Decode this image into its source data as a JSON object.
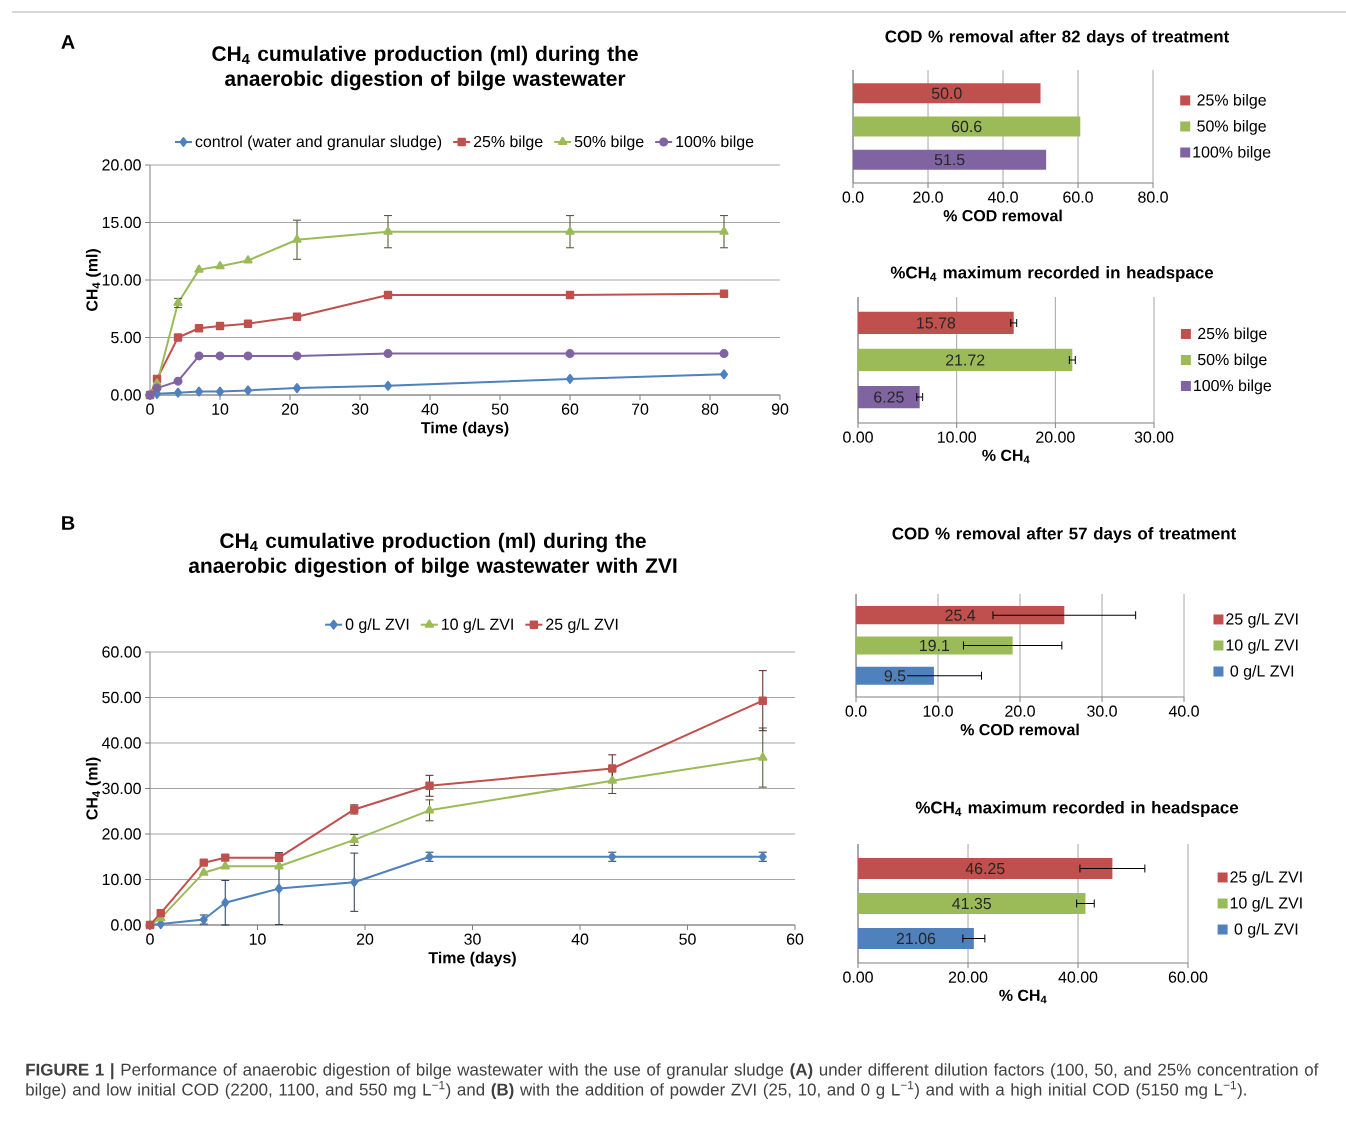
{
  "chart_data": [
    {
      "type": "line",
      "title": "CH$_{4}$ cumulative production (ml) during the anaerobic digestion of bilge wastewater",
      "xlabel": "Time (days)",
      "ylabel": "CH$_{4}$ (ml)",
      "x": [
        0,
        1,
        4,
        7,
        10,
        14,
        21,
        34,
        60,
        82
      ],
      "xlim": [
        0,
        90
      ],
      "ylim": [
        0,
        20
      ],
      "xticks": [
        0,
        10,
        20,
        30,
        40,
        50,
        60,
        70,
        80,
        90
      ],
      "yticks": [
        {
          "value": 0,
          "label": "0.00"
        },
        {
          "value": 5,
          "label": "5.00"
        },
        {
          "value": 10,
          "label": "10.00"
        },
        {
          "value": 15,
          "label": "15.00"
        },
        {
          "value": 20,
          "label": "20.00"
        }
      ],
      "grid": "y",
      "legend": "top",
      "line_style": "solid",
      "annotations": [
        "A"
      ],
      "series": [
        {
          "name": "control (water and granular sludge)",
          "color": "#4f81bd",
          "marker": "diamond",
          "values": [
            0,
            0.1,
            0.2,
            0.3,
            0.3,
            0.4,
            0.6,
            0.8,
            1.4,
            1.8
          ]
        },
        {
          "name": "25% bilge",
          "color": "#c0504d",
          "marker": "square",
          "values": [
            0,
            1.4,
            5.0,
            5.8,
            6.0,
            6.2,
            6.8,
            8.7,
            8.7,
            8.8
          ],
          "errors": [
            null,
            null,
            null,
            null,
            null,
            null,
            null,
            null,
            null,
            null
          ]
        },
        {
          "name": "50% bilge",
          "color": "#9bbb59",
          "marker": "triangle",
          "values": [
            0,
            1.0,
            8.0,
            10.9,
            11.2,
            11.7,
            13.5,
            14.2,
            14.2,
            14.2
          ],
          "errors": [
            null,
            null,
            0.4,
            null,
            null,
            null,
            1.7,
            1.4,
            1.4,
            1.4
          ]
        },
        {
          "name": "100% bilge",
          "color": "#8064a2",
          "marker": "circle",
          "values": [
            0,
            0.6,
            1.2,
            3.4,
            3.4,
            3.4,
            3.4,
            3.6,
            3.6,
            3.6
          ]
        }
      ]
    },
    {
      "type": "bar",
      "orientation": "horizontal",
      "title": "COD % removal after 82 days of treatment",
      "xlabel": "% COD removal",
      "categories": [
        null,
        null,
        null
      ],
      "xlim": [
        0,
        80
      ],
      "xticks": [
        {
          "value": 0,
          "label": "0.0"
        },
        {
          "value": 20,
          "label": "20.0"
        },
        {
          "value": 40,
          "label": "40.0"
        },
        {
          "value": 60,
          "label": "60.0"
        },
        {
          "value": 80,
          "label": "80.0"
        }
      ],
      "grid": "x",
      "legend": "right",
      "series": [
        {
          "name": "25% bilge",
          "color": "#c0504d",
          "values": [
            50.0,
            null,
            null
          ],
          "value_labels": [
            "50.0",
            null,
            null
          ]
        },
        {
          "name": "50% bilge",
          "color": "#9bbb59",
          "values": [
            null,
            60.6,
            null
          ],
          "value_labels": [
            null,
            "60.6",
            null
          ]
        },
        {
          "name": "100% bilge",
          "color": "#8064a2",
          "values": [
            null,
            null,
            51.5
          ],
          "value_labels": [
            null,
            null,
            "51.5"
          ]
        }
      ]
    },
    {
      "type": "bar",
      "orientation": "horizontal",
      "title": "%CH$_{4}$ maximum recorded in headspace",
      "xlabel": "% CH$_{4}$",
      "categories": [
        null,
        null,
        null
      ],
      "xlim": [
        0,
        30
      ],
      "xticks": [
        {
          "value": 0,
          "label": "0.00"
        },
        {
          "value": 10,
          "label": "10.00"
        },
        {
          "value": 20,
          "label": "20.00"
        },
        {
          "value": 30,
          "label": "30.00"
        }
      ],
      "grid": "x",
      "legend": "right",
      "series": [
        {
          "name": "25% bilge",
          "color": "#c0504d",
          "values": [
            15.78,
            null,
            null
          ],
          "value_labels": [
            "15.78",
            null,
            null
          ],
          "errors": [
            0.3,
            null,
            null
          ]
        },
        {
          "name": "50% bilge",
          "color": "#9bbb59",
          "values": [
            null,
            21.72,
            null
          ],
          "value_labels": [
            null,
            "21.72",
            null
          ],
          "errors": [
            null,
            0.3,
            null
          ]
        },
        {
          "name": "100% bilge",
          "color": "#8064a2",
          "values": [
            null,
            null,
            6.25
          ],
          "value_labels": [
            null,
            null,
            "6.25"
          ],
          "errors": [
            null,
            null,
            0.3
          ]
        }
      ]
    },
    {
      "type": "line",
      "title": "CH$_{4}$ cumulative production (ml) during the anaerobic digestion of bilge wastewater with ZVI",
      "xlabel": "Time (days)",
      "ylabel": "CH$_{4}$ (ml)",
      "x": [
        0,
        1,
        5,
        7,
        12,
        19,
        26,
        43,
        57
      ],
      "xlim": [
        0,
        60
      ],
      "ylim": [
        0,
        60
      ],
      "xticks": [
        0,
        10,
        20,
        30,
        40,
        50,
        60
      ],
      "yticks": [
        {
          "value": 0,
          "label": "0.00"
        },
        {
          "value": 10,
          "label": "10.00"
        },
        {
          "value": 20,
          "label": "20.00"
        },
        {
          "value": 30,
          "label": "30.00"
        },
        {
          "value": 40,
          "label": "40.00"
        },
        {
          "value": 50,
          "label": "50.00"
        },
        {
          "value": 60,
          "label": "60.00"
        }
      ],
      "grid": "y",
      "legend": "top",
      "line_style": "solid",
      "annotations": [
        "B",
        "**FIGURE 1 |** Performance of anaerobic digestion of bilge wastewater with the use of granular sludge **(A)** under different dilution factors (100, 50, and 25% concentration of bilge) and low initial COD (2200, 1100, and 550 mg L$^{−1}$) and **(B)** with the addition of powder ZVI (25, 10, and 0 g L$^{−1}$) and with a high initial COD (5150 mg L$^{−1}$)."
      ],
      "series": [
        {
          "name": "0 g/L ZVI",
          "color": "#4f81bd",
          "marker": "diamond",
          "values": [
            0,
            0.2,
            1.2,
            4.9,
            8.0,
            9.4,
            15.0,
            15.0,
            15.0
          ],
          "errors": [
            null,
            null,
            1.0,
            4.9,
            7.9,
            6.4,
            1.0,
            1.0,
            1.0
          ]
        },
        {
          "name": "10 g/L ZVI",
          "color": "#9bbb59",
          "marker": "triangle",
          "values": [
            0,
            1.5,
            11.5,
            12.9,
            12.9,
            18.7,
            25.2,
            31.7,
            36.8
          ],
          "errors": [
            null,
            null,
            null,
            null,
            null,
            1.2,
            2.3,
            2.8,
            6.5
          ]
        },
        {
          "name": "25 g/L ZVI",
          "color": "#c0504d",
          "marker": "square",
          "values": [
            0,
            2.6,
            13.7,
            14.8,
            14.8,
            25.4,
            30.6,
            34.4,
            49.3
          ],
          "errors": [
            null,
            null,
            null,
            null,
            0.8,
            1.0,
            2.3,
            3.0,
            6.6
          ]
        }
      ]
    },
    {
      "type": "bar",
      "orientation": "horizontal",
      "title": "COD % removal after 57 days of treatment",
      "xlabel": "% COD removal",
      "categories": [
        null,
        null,
        null
      ],
      "xlim": [
        0,
        40
      ],
      "xticks": [
        {
          "value": 0,
          "label": "0.0"
        },
        {
          "value": 10,
          "label": "10.0"
        },
        {
          "value": 20,
          "label": "20.0"
        },
        {
          "value": 30,
          "label": "30.0"
        },
        {
          "value": 40,
          "label": "40.0"
        }
      ],
      "grid": "x",
      "legend": "right",
      "series": [
        {
          "name": "25 g/L ZVI",
          "color": "#c0504d",
          "values": [
            25.4,
            null,
            null
          ],
          "value_labels": [
            "25.4",
            null,
            null
          ],
          "errors": [
            8.7,
            null,
            null
          ]
        },
        {
          "name": "10 g/L ZVI",
          "color": "#9bbb59",
          "values": [
            null,
            19.1,
            null
          ],
          "value_labels": [
            null,
            "19.1",
            null
          ],
          "errors": [
            null,
            6.0,
            null
          ]
        },
        {
          "name": "0 g/L ZVI",
          "color": "#4f81bd",
          "values": [
            null,
            null,
            9.5
          ],
          "value_labels": [
            null,
            null,
            "9.5"
          ],
          "errors": [
            null,
            null,
            5.8
          ]
        }
      ]
    },
    {
      "type": "bar",
      "orientation": "horizontal",
      "title": "%CH$_{4}$ maximum recorded in headspace",
      "xlabel": "% CH$_{4}$",
      "categories": [
        null,
        null,
        null
      ],
      "xlim": [
        0,
        60
      ],
      "xticks": [
        {
          "value": 0,
          "label": "0.00"
        },
        {
          "value": 20,
          "label": "20.00"
        },
        {
          "value": 40,
          "label": "40.00"
        },
        {
          "value": 60,
          "label": "60.00"
        }
      ],
      "grid": "x",
      "legend": "right",
      "series": [
        {
          "name": "25 g/L ZVI",
          "color": "#c0504d",
          "values": [
            46.25,
            null,
            null
          ],
          "value_labels": [
            "46.25",
            null,
            null
          ],
          "errors": [
            5.9,
            null,
            null
          ]
        },
        {
          "name": "10 g/L ZVI",
          "color": "#9bbb59",
          "values": [
            null,
            41.35,
            null
          ],
          "value_labels": [
            null,
            "41.35",
            null
          ],
          "errors": [
            null,
            1.6,
            null
          ]
        },
        {
          "name": "0 g/L ZVI",
          "color": "#4f81bd",
          "values": [
            null,
            null,
            21.06
          ],
          "value_labels": [
            null,
            null,
            "21.06"
          ],
          "errors": [
            null,
            null,
            2.0
          ]
        }
      ]
    }
  ]
}
